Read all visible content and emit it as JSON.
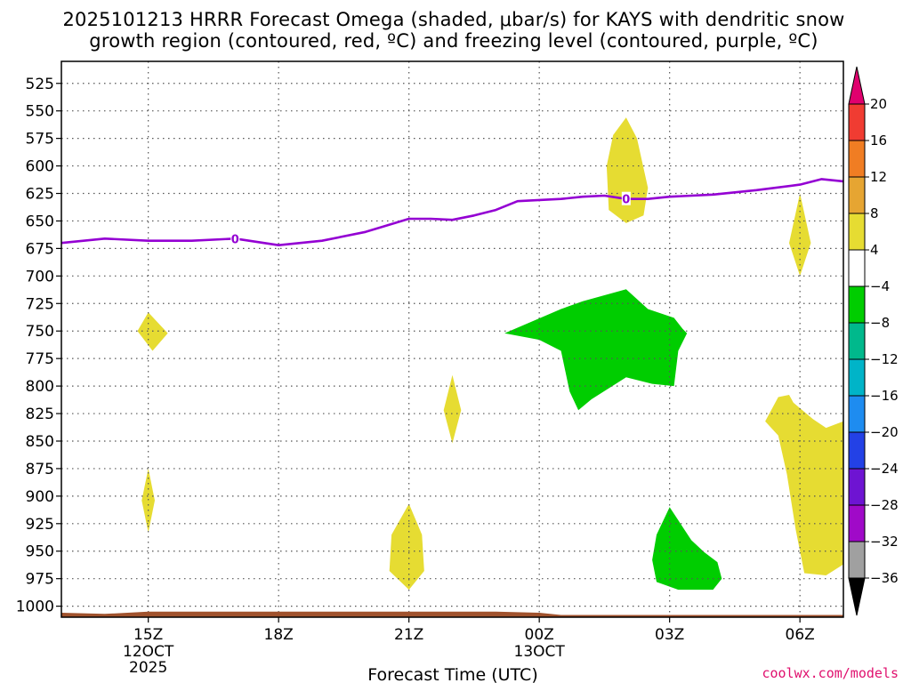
{
  "chart_data": {
    "type": "area",
    "title_line1": "2025101213 HRRR Forecast Omega (shaded, μbar/s) for KAYS with dendritic snow",
    "title_line2": "growth region (contoured, red, ºC) and freezing level (contoured, purple, ºC)",
    "xlabel": "Forecast Time (UTC)",
    "credit": "coolwx.com/models",
    "xlim": [
      13,
      31
    ],
    "ylim": [
      1010,
      505
    ],
    "x_ticks": [
      {
        "x": 15,
        "label": "15Z",
        "sub1": "12OCT",
        "sub2": "2025"
      },
      {
        "x": 18,
        "label": "18Z"
      },
      {
        "x": 21,
        "label": "21Z"
      },
      {
        "x": 24,
        "label": "00Z",
        "sub1": "13OCT"
      },
      {
        "x": 27,
        "label": "03Z"
      },
      {
        "x": 30,
        "label": "06Z"
      }
    ],
    "y_ticks": [
      {
        "p": 525,
        "label": "525"
      },
      {
        "p": 550,
        "label": "550"
      },
      {
        "p": 575,
        "label": "575"
      },
      {
        "p": 600,
        "label": "600"
      },
      {
        "p": 625,
        "label": "625"
      },
      {
        "p": 650,
        "label": "650"
      },
      {
        "p": 675,
        "label": "675"
      },
      {
        "p": 700,
        "label": "700"
      },
      {
        "p": 725,
        "label": "725"
      },
      {
        "p": 750,
        "label": "750"
      },
      {
        "p": 775,
        "label": "775"
      },
      {
        "p": 800,
        "label": "800"
      },
      {
        "p": 825,
        "label": "825"
      },
      {
        "p": 850,
        "label": "850"
      },
      {
        "p": 875,
        "label": "875"
      },
      {
        "p": 900,
        "label": "900"
      },
      {
        "p": 925,
        "label": "925"
      },
      {
        "p": 950,
        "label": "950"
      },
      {
        "p": 975,
        "label": "975"
      },
      {
        "p": 1000,
        "label": "1000"
      }
    ],
    "colorbar": [
      {
        "lo": 20,
        "hi": null,
        "color": "#e0006e",
        "label": "20"
      },
      {
        "lo": 16,
        "hi": 20,
        "color": "#f03c32",
        "label": "16"
      },
      {
        "lo": 12,
        "hi": 16,
        "color": "#f07d23",
        "label": "12"
      },
      {
        "lo": 8,
        "hi": 12,
        "color": "#e6a532",
        "label": "8"
      },
      {
        "lo": 4,
        "hi": 8,
        "color": "#e6dc32",
        "label": "4"
      },
      {
        "lo": -4,
        "hi": 4,
        "color": "#ffffff",
        "label": "-4"
      },
      {
        "lo": -8,
        "hi": -4,
        "color": "#00cd00",
        "label": "-8"
      },
      {
        "lo": -12,
        "hi": -8,
        "color": "#00b98c",
        "label": "-12"
      },
      {
        "lo": -16,
        "hi": -12,
        "color": "#00b4c8",
        "label": "-16"
      },
      {
        "lo": -20,
        "hi": -16,
        "color": "#1e8cf0",
        "label": "-20"
      },
      {
        "lo": -24,
        "hi": -20,
        "color": "#2341e6",
        "label": "-24"
      },
      {
        "lo": -28,
        "hi": -24,
        "color": "#6e14d2",
        "label": "-28"
      },
      {
        "lo": -32,
        "hi": -28,
        "color": "#a00ac8",
        "label": "-32"
      },
      {
        "lo": -36,
        "hi": -32,
        "color": "#a0a0a0",
        "label": "-36"
      },
      {
        "lo": null,
        "hi": -36,
        "color": "#000000",
        "label": ""
      }
    ],
    "omega_regions": [
      {
        "sign": "positive",
        "range": "4 to 8",
        "color": "#e6dc32",
        "points": [
          [
            15,
            733
          ],
          [
            15.45,
            752
          ],
          [
            15.1,
            768
          ],
          [
            14.75,
            750
          ]
        ]
      },
      {
        "sign": "positive",
        "range": "4 to 8",
        "color": "#e6dc32",
        "points": [
          [
            15,
            875
          ],
          [
            15.15,
            904
          ],
          [
            15,
            933
          ],
          [
            14.85,
            904
          ]
        ]
      },
      {
        "sign": "positive",
        "range": "4 to 8",
        "color": "#e6dc32",
        "points": [
          [
            22,
            790
          ],
          [
            22.2,
            822
          ],
          [
            22,
            852
          ],
          [
            21.8,
            822
          ]
        ]
      },
      {
        "sign": "positive",
        "range": "4 to 8",
        "color": "#e6dc32",
        "points": [
          [
            21,
            907
          ],
          [
            21.3,
            935
          ],
          [
            21.35,
            968
          ],
          [
            21,
            985
          ],
          [
            20.55,
            968
          ],
          [
            20.6,
            935
          ]
        ]
      },
      {
        "sign": "positive",
        "range": "4 to 8",
        "color": "#e6dc32",
        "points": [
          [
            26,
            556
          ],
          [
            26.25,
            575
          ],
          [
            26.5,
            620
          ],
          [
            26.4,
            645
          ],
          [
            26,
            652
          ],
          [
            25.6,
            640
          ],
          [
            25.55,
            600
          ],
          [
            25.7,
            572
          ]
        ]
      },
      {
        "sign": "positive",
        "range": "4 to 8",
        "color": "#e6dc32",
        "points": [
          [
            30,
            625
          ],
          [
            30.25,
            670
          ],
          [
            30,
            700
          ],
          [
            29.75,
            670
          ]
        ]
      },
      {
        "sign": "positive",
        "range": "4 to 8",
        "color": "#e6dc32",
        "points": [
          [
            29.85,
            815
          ],
          [
            30.3,
            830
          ],
          [
            30.6,
            838
          ],
          [
            31,
            832
          ],
          [
            31,
            962
          ],
          [
            30.6,
            972
          ],
          [
            30.1,
            970
          ],
          [
            29.9,
            930
          ],
          [
            29.7,
            880
          ],
          [
            29.5,
            845
          ],
          [
            29.2,
            832
          ],
          [
            29.5,
            810
          ],
          [
            29.75,
            808
          ]
        ]
      },
      {
        "sign": "negative",
        "range": "-8 to -4",
        "color": "#00cd00",
        "points": [
          [
            23.2,
            752
          ],
          [
            24.5,
            730
          ],
          [
            25,
            723
          ],
          [
            26,
            712
          ],
          [
            26.5,
            730
          ],
          [
            27.1,
            738
          ],
          [
            27.3,
            748
          ],
          [
            27.4,
            752
          ],
          [
            27.2,
            768
          ],
          [
            27.1,
            800
          ],
          [
            26.6,
            798
          ],
          [
            26,
            792
          ],
          [
            25.2,
            812
          ],
          [
            24.9,
            822
          ],
          [
            24.7,
            805
          ],
          [
            24.5,
            768
          ],
          [
            24,
            758
          ]
        ]
      },
      {
        "sign": "negative",
        "range": "-8 to -4",
        "color": "#00cd00",
        "points": [
          [
            27,
            910
          ],
          [
            27.3,
            928
          ],
          [
            27.5,
            940
          ],
          [
            27.8,
            951
          ],
          [
            28.1,
            960
          ],
          [
            28.2,
            975
          ],
          [
            28,
            985
          ],
          [
            27.2,
            985
          ],
          [
            26.7,
            978
          ],
          [
            26.6,
            958
          ],
          [
            26.7,
            935
          ]
        ]
      }
    ],
    "freezing_level": {
      "value_label": "0",
      "label_x": [
        17,
        26
      ],
      "points": [
        [
          13,
          670
        ],
        [
          14,
          666
        ],
        [
          15,
          668
        ],
        [
          16,
          668
        ],
        [
          17,
          666
        ],
        [
          18,
          672
        ],
        [
          19,
          668
        ],
        [
          20,
          660
        ],
        [
          21,
          648
        ],
        [
          21.5,
          648
        ],
        [
          22,
          649
        ],
        [
          22.5,
          645
        ],
        [
          23,
          640
        ],
        [
          23.5,
          632
        ],
        [
          24,
          631
        ],
        [
          24.5,
          630
        ],
        [
          25,
          628
        ],
        [
          25.5,
          627
        ],
        [
          26,
          630
        ],
        [
          26.5,
          630
        ],
        [
          27,
          628
        ],
        [
          28,
          626
        ],
        [
          29,
          622
        ],
        [
          30,
          617
        ],
        [
          30.5,
          612
        ],
        [
          31,
          614
        ]
      ]
    },
    "terrain_top": [
      [
        13,
        1006
      ],
      [
        14,
        1007
      ],
      [
        15,
        1005
      ],
      [
        16,
        1005
      ],
      [
        17,
        1005
      ],
      [
        18,
        1005
      ],
      [
        19,
        1005
      ],
      [
        20,
        1005
      ],
      [
        21,
        1005
      ],
      [
        22,
        1005
      ],
      [
        23,
        1005
      ],
      [
        24,
        1006
      ],
      [
        24.5,
        1008
      ],
      [
        25,
        1008
      ],
      [
        31,
        1008
      ]
    ],
    "terrain_color": "#a0522d",
    "freezing_color": "#9400d3"
  }
}
